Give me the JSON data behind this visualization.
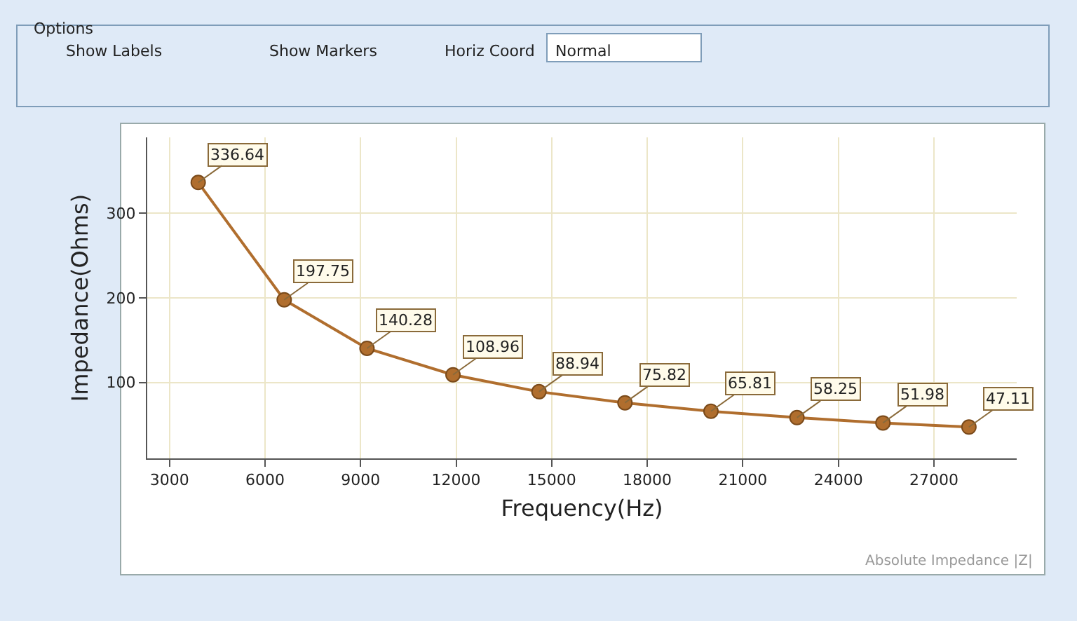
{
  "chart_data": {
    "type": "line",
    "xlabel": "Frequency(Hz)",
    "ylabel": "Impedance(Ohms)",
    "x": [
      3900,
      6600,
      9200,
      11900,
      14600,
      17300,
      20000,
      22700,
      25400,
      28100
    ],
    "series": [
      {
        "color": "#b06e2e",
        "values": [
          336.64,
          197.75,
          140.28,
          108.96,
          88.94,
          75.82,
          65.81,
          58.25,
          51.98,
          47.11
        ]
      }
    ],
    "xlim": [
      2300,
      29600
    ],
    "xticks": [
      3000,
      6000,
      9000,
      12000,
      15000,
      18000,
      21000,
      24000,
      27000
    ],
    "ylim": [
      10,
      390
    ],
    "yticks": [
      100,
      200,
      300
    ],
    "grid": true,
    "marker": "circle",
    "line_style": "solid",
    "data_labels": true,
    "annotations": [
      "Options",
      "Show Labels",
      "Show Markers",
      "Horiz Coord",
      "Normal",
      "Absolute Impedance |Z|"
    ]
  }
}
